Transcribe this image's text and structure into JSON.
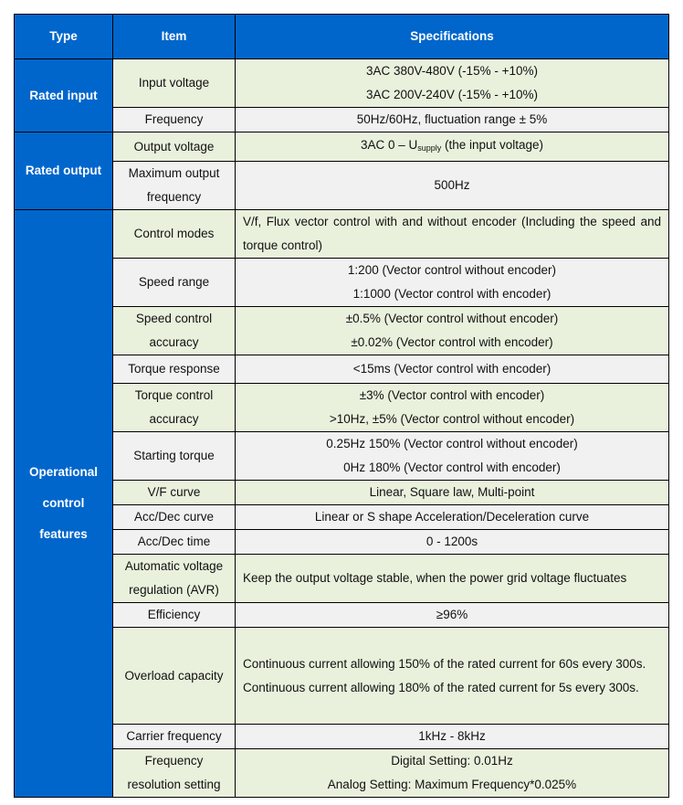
{
  "header": {
    "type": "Type",
    "item": "Item",
    "specifications": "Specifications"
  },
  "colors": {
    "header_bg": "#0066cc",
    "row_green": "#e9f0dc",
    "row_gray": "#f1f1f1"
  },
  "groups": [
    {
      "label": [
        "Rated input"
      ],
      "span": 2
    },
    {
      "label": [
        "Rated output"
      ],
      "span": 2
    },
    {
      "label": [
        "Operational",
        "control",
        "features"
      ],
      "span": 14
    }
  ],
  "rows": [
    {
      "item": [
        "Input voltage"
      ],
      "spec": [
        "3AC 380V-480V (-15% - +10%)",
        "3AC 200V-240V (-15% - +10%)"
      ],
      "bg": "green"
    },
    {
      "item": [
        "Frequency"
      ],
      "spec": [
        "50Hz/60Hz, fluctuation range ± 5%"
      ],
      "bg": "gray"
    },
    {
      "item": [
        "Output voltage"
      ],
      "spec_parts": {
        "before": "3AC 0 – U",
        "sub": "supply",
        "after": " (the input voltage)"
      },
      "bg": "green"
    },
    {
      "item": [
        "Maximum output",
        "frequency"
      ],
      "spec": [
        "500Hz"
      ],
      "bg": "gray"
    },
    {
      "item": [
        "Control modes"
      ],
      "spec": [
        "V/f, Flux vector control with and without encoder (Including the speed and torque control)"
      ],
      "justify": true,
      "bg": "green"
    },
    {
      "item": [
        "Speed range"
      ],
      "spec": [
        "1:200 (Vector control without encoder)",
        "1:1000 (Vector control with encoder)"
      ],
      "bg": "gray"
    },
    {
      "item": [
        "Speed control",
        "accuracy"
      ],
      "spec": [
        "±0.5% (Vector control without encoder)",
        "±0.02% (Vector control with encoder)"
      ],
      "bg": "green"
    },
    {
      "item": [
        "Torque response"
      ],
      "spec": [
        "<15ms (Vector control with encoder)"
      ],
      "bg": "gray"
    },
    {
      "item": [
        "Torque control",
        "accuracy"
      ],
      "spec": [
        "±3% (Vector control with encoder)",
        ">10Hz, ±5% (Vector control without encoder)"
      ],
      "bg": "green"
    },
    {
      "item": [
        "Starting torque"
      ],
      "spec": [
        "0.25Hz 150% (Vector control without encoder)",
        "0Hz 180% (Vector control with encoder)"
      ],
      "bg": "gray"
    },
    {
      "item": [
        "V/F curve"
      ],
      "spec": [
        "Linear, Square law, Multi-point"
      ],
      "bg": "green"
    },
    {
      "item": [
        "Acc/Dec curve"
      ],
      "spec": [
        "Linear or S shape Acceleration/Deceleration curve"
      ],
      "bg": "gray"
    },
    {
      "item": [
        "Acc/Dec time"
      ],
      "spec": [
        "0 - 1200s"
      ],
      "bg": "gray"
    },
    {
      "item": [
        "Automatic voltage",
        "regulation (AVR)"
      ],
      "spec": [
        "Keep the output voltage stable, when the power grid voltage fluctuates"
      ],
      "justify": true,
      "bg": "green"
    },
    {
      "item": [
        "Efficiency"
      ],
      "spec": [
        "≥96%"
      ],
      "bg": "gray"
    },
    {
      "item": [
        "Overload capacity"
      ],
      "spec": [
        "Continuous current allowing 150% of the rated current for 60s every 300s.",
        "Continuous current allowing 180% of the rated current for 5s every 300s."
      ],
      "justify": true,
      "bg": "green"
    },
    {
      "item": [
        "Carrier frequency"
      ],
      "spec": [
        "1kHz - 8kHz"
      ],
      "bg": "gray"
    },
    {
      "item": [
        "Frequency",
        "resolution setting"
      ],
      "spec": [
        "Digital Setting: 0.01Hz",
        "Analog Setting: Maximum Frequency*0.025%"
      ],
      "bg": "green"
    }
  ]
}
